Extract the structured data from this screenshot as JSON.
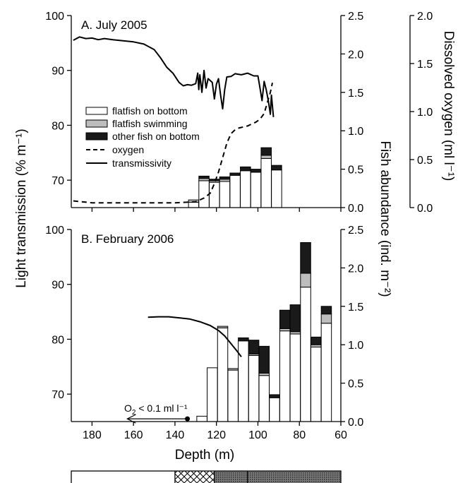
{
  "chart_data": {
    "type": "bar",
    "xlabel": "Depth (m)",
    "ylabel_left": "Light transmission (% m⁻¹)",
    "ylabel_right": "Fish abundance (ind. m⁻²)",
    "ylabel_right_oxygen": "Dissolved oxygen (ml l⁻¹)",
    "x_ticks": [
      "180",
      "160",
      "140",
      "120",
      "100",
      "80",
      "60"
    ],
    "xlim": [
      190,
      60
    ],
    "legend": {
      "position": "top-left of panel A",
      "entries": [
        "flatfish on bottom",
        "flatfish swimming",
        "other fish on bottom",
        "oxygen",
        "transmissivity"
      ]
    },
    "colors": {
      "flatfish_on_bottom": "#ffffff",
      "flatfish_swimming": "#bdbdbd",
      "other_fish_on_bottom": "#1a1a1a",
      "line": "#000000"
    },
    "panels": [
      {
        "id": "A",
        "title": "A. July 2005",
        "left_ticks": [
          "70",
          "80",
          "90",
          "100"
        ],
        "left_ylim": [
          65,
          100
        ],
        "abundance_ticks": [
          "0.0",
          "0.5",
          "1.0",
          "1.5",
          "2.0",
          "2.5"
        ],
        "abundance_ylim": [
          0,
          2.5
        ],
        "oxygen_ticks": [
          "0.0",
          "0.5",
          "1.0",
          "1.5",
          "2.0"
        ],
        "oxygen_ylim": [
          0,
          2
        ],
        "bars": [
          {
            "depth": 131,
            "flatfish_on_bottom": 0.07,
            "flatfish_swimming": 0.03,
            "other_fish_on_bottom": 0.0
          },
          {
            "depth": 126,
            "flatfish_on_bottom": 0.35,
            "flatfish_swimming": 0.03,
            "other_fish_on_bottom": 0.03
          },
          {
            "depth": 121,
            "flatfish_on_bottom": 0.33,
            "flatfish_swimming": 0.02,
            "other_fish_on_bottom": 0.02
          },
          {
            "depth": 116,
            "flatfish_on_bottom": 0.34,
            "flatfish_swimming": 0.03,
            "other_fish_on_bottom": 0.03
          },
          {
            "depth": 111,
            "flatfish_on_bottom": 0.42,
            "flatfish_swimming": 0.0,
            "other_fish_on_bottom": 0.03
          },
          {
            "depth": 106,
            "flatfish_on_bottom": 0.48,
            "flatfish_swimming": 0.0,
            "other_fish_on_bottom": 0.05
          },
          {
            "depth": 101,
            "flatfish_on_bottom": 0.46,
            "flatfish_swimming": 0.0,
            "other_fish_on_bottom": 0.04
          },
          {
            "depth": 96,
            "flatfish_on_bottom": 0.64,
            "flatfish_swimming": 0.04,
            "other_fish_on_bottom": 0.1
          },
          {
            "depth": 91,
            "flatfish_on_bottom": 0.49,
            "flatfish_swimming": 0.0,
            "other_fish_on_bottom": 0.06
          }
        ],
        "transmissivity": [
          [
            189,
            95.5
          ],
          [
            186,
            96.1
          ],
          [
            183,
            95.8
          ],
          [
            180,
            95.9
          ],
          [
            177,
            95.6
          ],
          [
            174,
            95.8
          ],
          [
            170,
            95.6
          ],
          [
            165,
            95.4
          ],
          [
            160,
            95.2
          ],
          [
            155,
            94.8
          ],
          [
            150,
            93.8
          ],
          [
            147,
            92.3
          ],
          [
            144,
            90.6
          ],
          [
            141,
            89.5
          ],
          [
            138,
            87.8
          ],
          [
            136,
            87.2
          ],
          [
            134,
            87.4
          ],
          [
            132,
            87.3
          ],
          [
            130,
            87.6
          ],
          [
            129,
            89.5
          ],
          [
            128.5,
            86.5
          ],
          [
            128,
            89.2
          ],
          [
            127,
            86.0
          ],
          [
            126,
            90.0
          ],
          [
            125,
            86.8
          ],
          [
            124,
            88.5
          ],
          [
            122,
            87.8
          ],
          [
            121,
            84.8
          ],
          [
            120,
            87.5
          ],
          [
            119,
            88.5
          ],
          [
            118,
            85.5
          ],
          [
            117,
            83.0
          ],
          [
            116,
            86.5
          ],
          [
            115,
            88.8
          ],
          [
            113,
            88.9
          ],
          [
            111,
            89.4
          ],
          [
            108,
            89.2
          ],
          [
            105,
            89.5
          ],
          [
            102,
            89.0
          ],
          [
            100,
            89.0
          ],
          [
            99,
            86.8
          ],
          [
            98,
            84.5
          ],
          [
            97,
            88.0
          ],
          [
            96,
            86.5
          ],
          [
            95,
            84.5
          ],
          [
            94,
            82.0
          ],
          [
            93.5,
            85.5
          ],
          [
            92.5,
            81.5
          ]
        ],
        "oxygen": [
          [
            189,
            0.07
          ],
          [
            180,
            0.05
          ],
          [
            170,
            0.05
          ],
          [
            160,
            0.05
          ],
          [
            150,
            0.05
          ],
          [
            140,
            0.05
          ],
          [
            130,
            0.06
          ],
          [
            126,
            0.1
          ],
          [
            123,
            0.15
          ],
          [
            121,
            0.25
          ],
          [
            119,
            0.37
          ],
          [
            117,
            0.52
          ],
          [
            115,
            0.67
          ],
          [
            113,
            0.77
          ],
          [
            111,
            0.81
          ],
          [
            109,
            0.83
          ],
          [
            107,
            0.84
          ],
          [
            105,
            0.85
          ],
          [
            103,
            0.87
          ],
          [
            101,
            0.89
          ],
          [
            99,
            0.92
          ],
          [
            97,
            0.98
          ],
          [
            95.5,
            1.09
          ],
          [
            94,
            1.2
          ],
          [
            93,
            1.3
          ]
        ]
      },
      {
        "id": "B",
        "title": "B. February 2006",
        "left_ticks": [
          "70",
          "80",
          "90",
          "100"
        ],
        "left_ylim": [
          65,
          100
        ],
        "abundance_ticks": [
          "0.0",
          "0.5",
          "1.0",
          "1.5",
          "2.0",
          "2.5"
        ],
        "abundance_ylim": [
          0,
          2.5
        ],
        "annotation": {
          "prefix": "O",
          "subscript": "2",
          "rest": " < 0.1 ml l⁻¹",
          "arrow_from_depth": 134,
          "arrow_to_depth": 163,
          "at_transmission": 65.5
        },
        "bars": [
          {
            "depth": 127,
            "flatfish_on_bottom": 0.07,
            "flatfish_swimming": 0.0,
            "other_fish_on_bottom": 0.0
          },
          {
            "depth": 122,
            "flatfish_on_bottom": 0.7,
            "flatfish_swimming": 0.0,
            "other_fish_on_bottom": 0.0
          },
          {
            "depth": 117,
            "flatfish_on_bottom": 1.22,
            "flatfish_swimming": 0.02,
            "other_fish_on_bottom": 0.0
          },
          {
            "depth": 112,
            "flatfish_on_bottom": 0.67,
            "flatfish_swimming": 0.02,
            "other_fish_on_bottom": 0.0
          },
          {
            "depth": 107,
            "flatfish_on_bottom": 1.05,
            "flatfish_swimming": 0.0,
            "other_fish_on_bottom": 0.04
          },
          {
            "depth": 102,
            "flatfish_on_bottom": 0.86,
            "flatfish_swimming": 0.02,
            "other_fish_on_bottom": 0.18
          },
          {
            "depth": 97,
            "flatfish_on_bottom": 0.6,
            "flatfish_swimming": 0.03,
            "other_fish_on_bottom": 0.35
          },
          {
            "depth": 92,
            "flatfish_on_bottom": 0.31,
            "flatfish_swimming": 0.0,
            "other_fish_on_bottom": 0.04
          },
          {
            "depth": 87,
            "flatfish_on_bottom": 1.18,
            "flatfish_swimming": 0.03,
            "other_fish_on_bottom": 0.24
          },
          {
            "depth": 82,
            "flatfish_on_bottom": 1.14,
            "flatfish_swimming": 0.03,
            "other_fish_on_bottom": 0.35
          },
          {
            "depth": 77,
            "flatfish_on_bottom": 1.75,
            "flatfish_swimming": 0.18,
            "other_fish_on_bottom": 0.4
          },
          {
            "depth": 72,
            "flatfish_on_bottom": 0.97,
            "flatfish_swimming": 0.03,
            "other_fish_on_bottom": 0.1
          },
          {
            "depth": 67,
            "flatfish_on_bottom": 1.28,
            "flatfish_swimming": 0.12,
            "other_fish_on_bottom": 0.1
          }
        ],
        "transmissivity": [
          [
            153,
            84.0
          ],
          [
            148,
            84.1
          ],
          [
            143,
            84.1
          ],
          [
            138,
            83.9
          ],
          [
            133,
            83.7
          ],
          [
            128,
            83.2
          ],
          [
            123,
            82.5
          ],
          [
            119,
            81.6
          ],
          [
            116,
            80.6
          ],
          [
            113,
            79.2
          ],
          [
            110,
            77.8
          ],
          [
            108,
            76.8
          ]
        ]
      }
    ],
    "substrate_bar": {
      "segments": [
        {
          "from": 190,
          "to": 140,
          "pattern": "blank"
        },
        {
          "from": 140,
          "to": 121,
          "pattern": "crosshatch"
        },
        {
          "from": 121,
          "to": 60,
          "pattern": "stipple"
        }
      ],
      "dividers": [
        140,
        121,
        105
      ]
    }
  }
}
